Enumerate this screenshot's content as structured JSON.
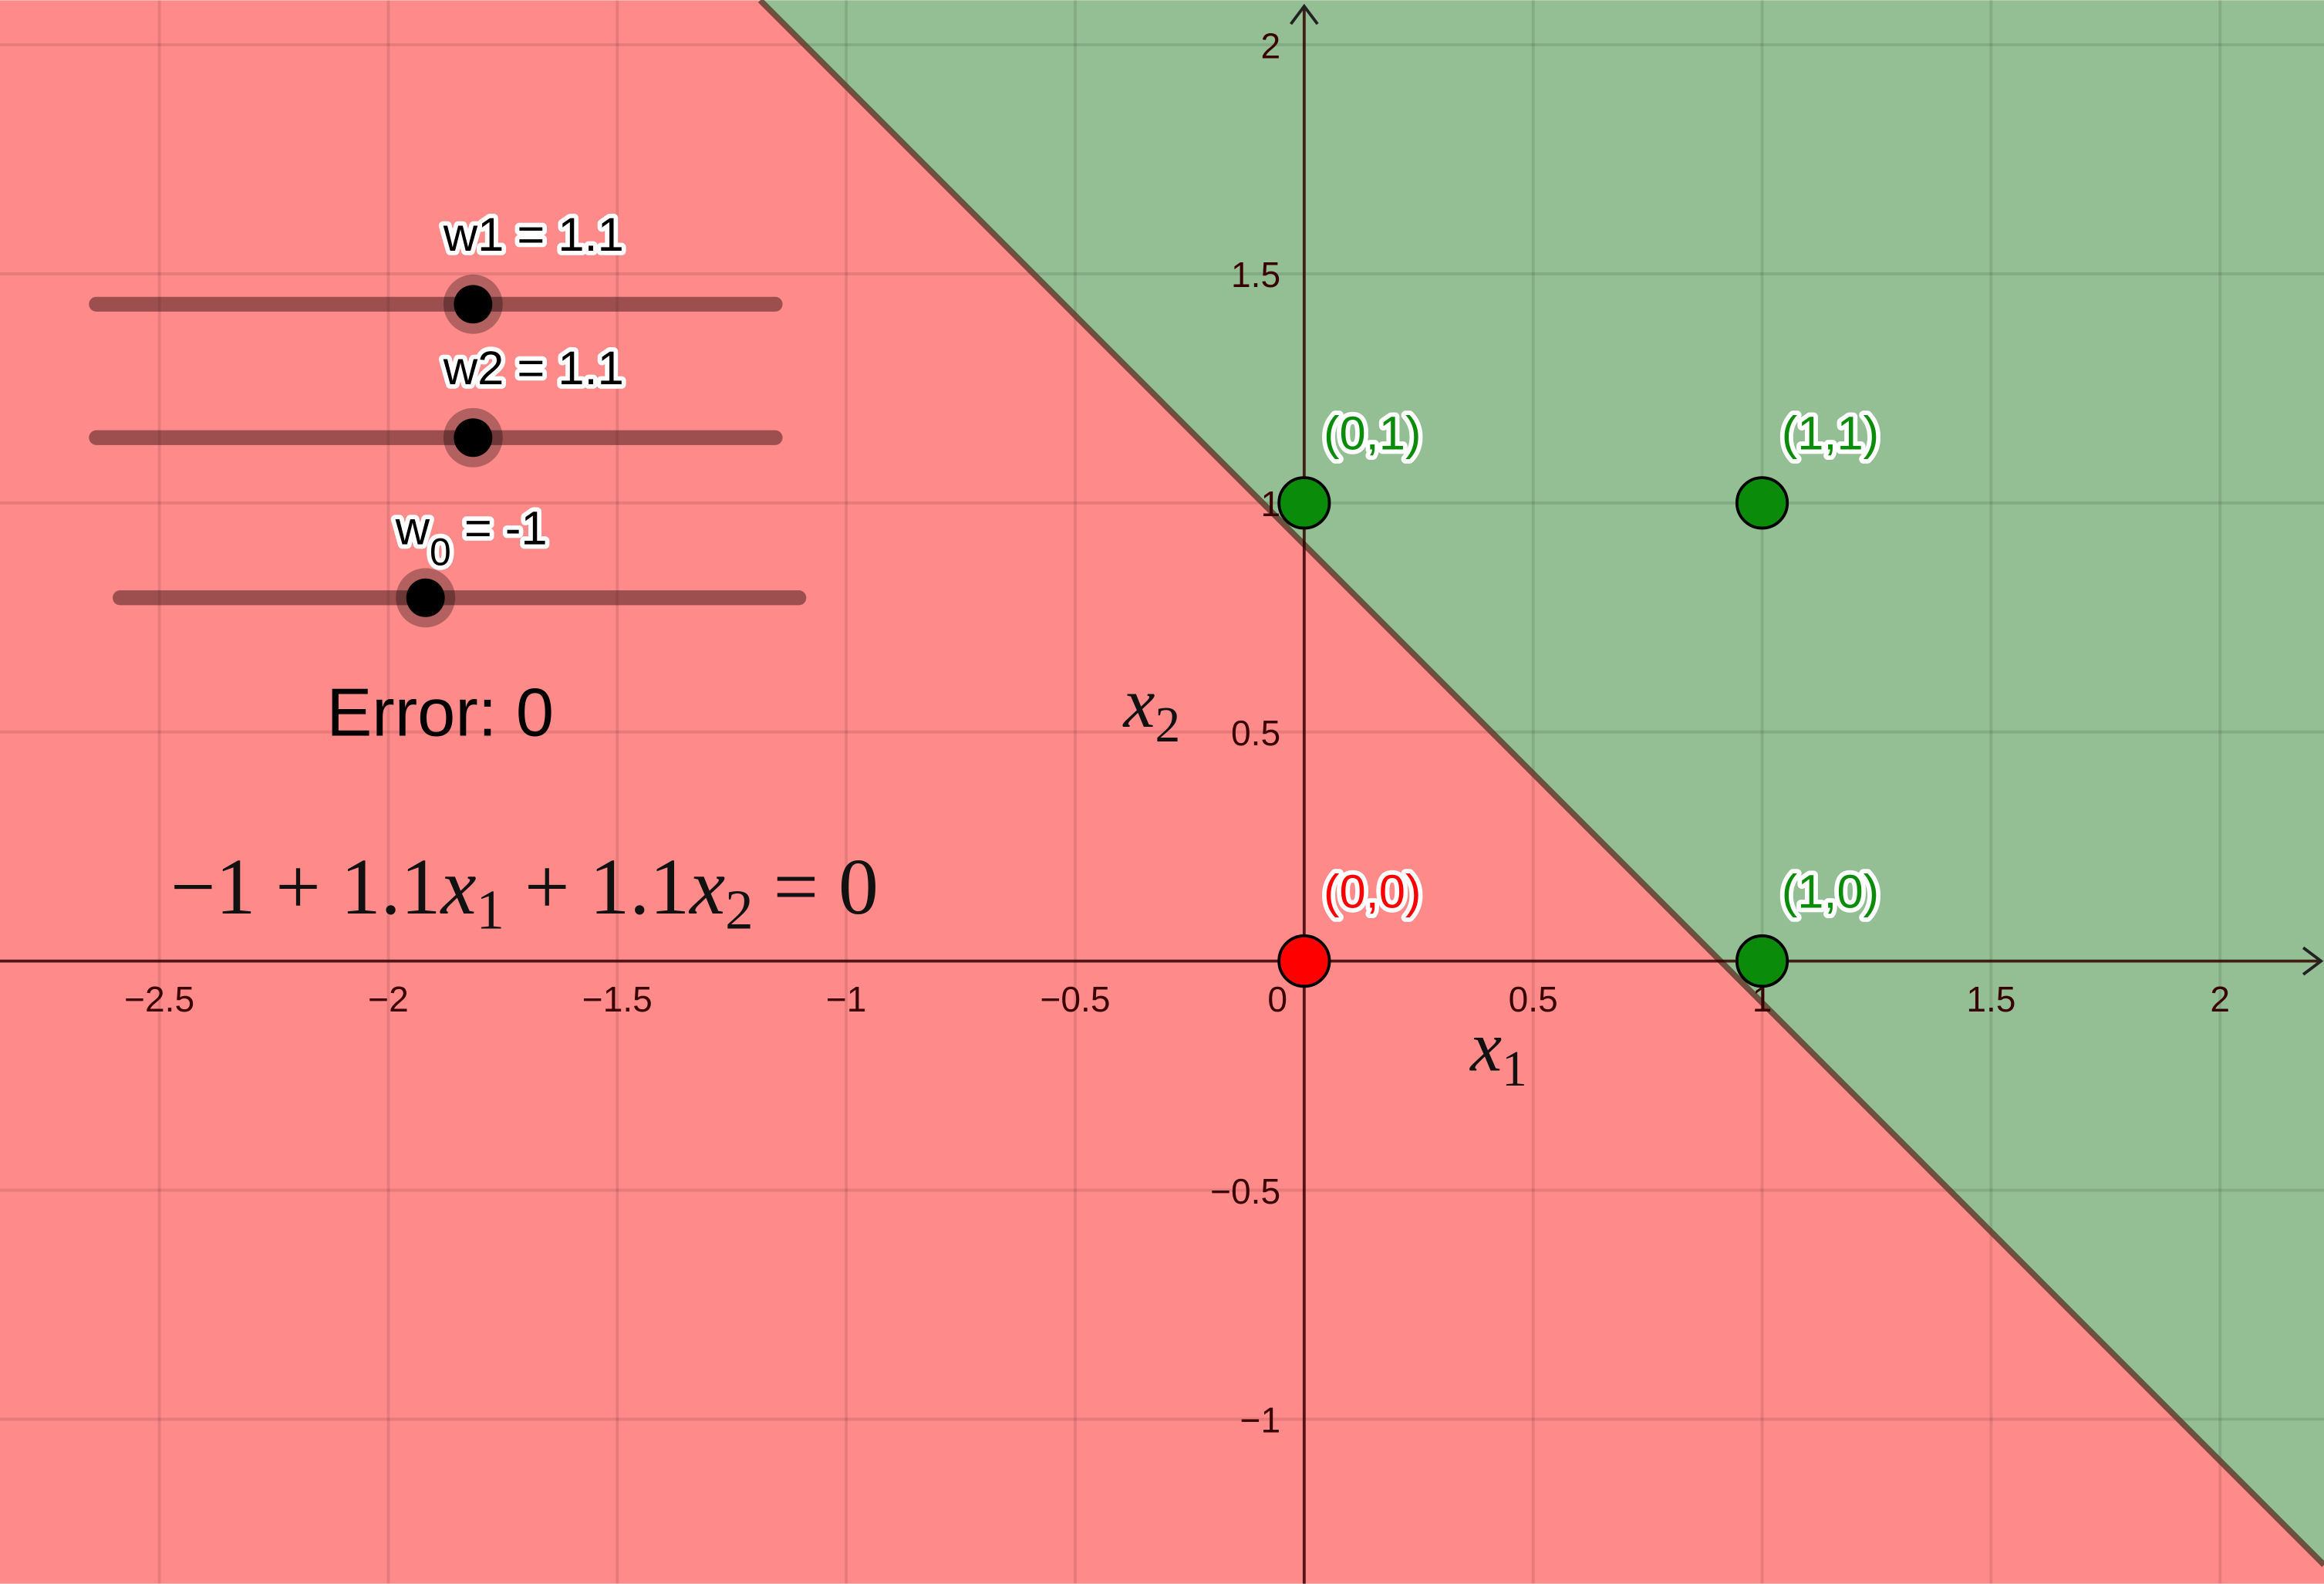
{
  "plot": {
    "xlim": [
      -2.848,
      2.227
    ],
    "ylim": [
      -1.359,
      2.097
    ],
    "xticks": [
      {
        "value": -2.5,
        "label": "−2.5"
      },
      {
        "value": -2,
        "label": "−2"
      },
      {
        "value": -1.5,
        "label": "−1.5"
      },
      {
        "value": -1,
        "label": "−1"
      },
      {
        "value": -0.5,
        "label": "−0.5"
      },
      0.5,
      1,
      1.5,
      2
    ],
    "yticks": [
      {
        "value": -1,
        "label": "−1"
      },
      {
        "value": -0.5,
        "label": "−0.5"
      },
      0.5,
      1,
      1.5,
      2
    ],
    "origin_label": "0",
    "grid": true,
    "x_label": {
      "base": "x",
      "sub": "1"
    },
    "y_label": {
      "base": "x",
      "sub": "2"
    },
    "positive_color": "#94bf94",
    "negative_color": "#ff8a8a"
  },
  "sliders": [
    {
      "label": {
        "base": "w1 = 1.1"
      },
      "value": 1.1,
      "min": -10,
      "max": 10
    },
    {
      "label": {
        "base": "w2 = 1.1"
      },
      "value": 1.1,
      "min": -10,
      "max": 10
    },
    {
      "label": {
        "base": "w",
        "sub": "0",
        "rest": " = -1"
      },
      "value": -1,
      "min": -10,
      "max": 10
    }
  ],
  "error_text": "Error: 0",
  "equation": [
    "−1 + 1.1",
    "x",
    "1",
    " + 1.1",
    "x",
    "2",
    " = 0"
  ],
  "points": [
    {
      "label": "(0,0)",
      "x": 0,
      "y": 0,
      "color": "#ff0000"
    },
    {
      "label": "(0,1)",
      "x": 0,
      "y": 1,
      "color": "#0a8c0a"
    },
    {
      "label": "(1,0)",
      "x": 1,
      "y": 0,
      "color": "#0a8c0a"
    },
    {
      "label": "(1,1)",
      "x": 1,
      "y": 1,
      "color": "#0a8c0a"
    }
  ]
}
